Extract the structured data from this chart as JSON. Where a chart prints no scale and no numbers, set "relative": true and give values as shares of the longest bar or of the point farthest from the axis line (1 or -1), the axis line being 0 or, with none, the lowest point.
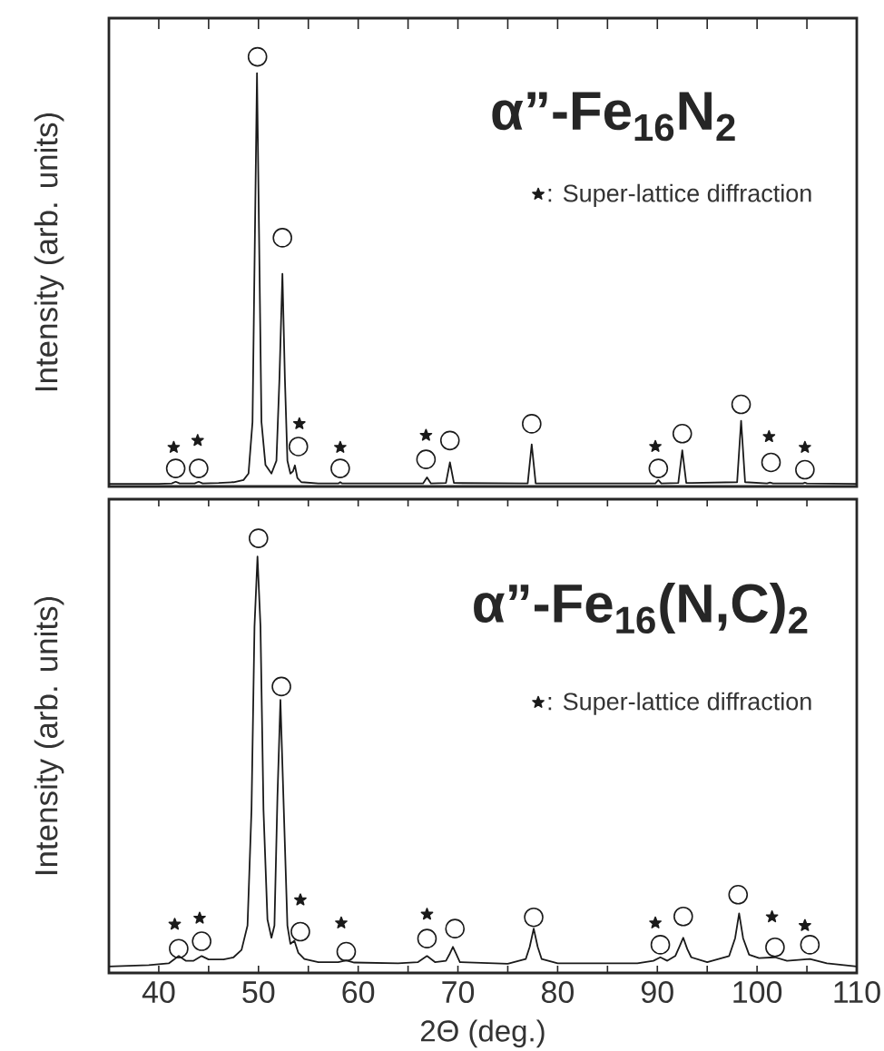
{
  "chart_data": [
    {
      "type": "line",
      "title": "α”-Fe$_{16}$N$_{2}$",
      "ylabel": "Intensity (arb. units)",
      "relative": true,
      "legend": "top right",
      "tick_labels": false,
      "xlim": [
        35,
        110
      ],
      "xticks": [
        40,
        {
          "value": 45,
          "label": null
        },
        50,
        {
          "value": 55,
          "label": null
        },
        60,
        {
          "value": 65,
          "label": null
        },
        70,
        {
          "value": 75,
          "label": null
        },
        80,
        {
          "value": 85,
          "label": null
        },
        90,
        {
          "value": 95,
          "label": null
        },
        100,
        {
          "value": 105,
          "label": null
        },
        110
      ],
      "series": [
        {
          "color": "#1a1a1a",
          "x": [
            35,
            40,
            41.3,
            41.7,
            42.1,
            43.6,
            44.0,
            44.4,
            46.0,
            47.5,
            48.5,
            49.0,
            49.4,
            49.65,
            49.85,
            50.05,
            50.3,
            50.7,
            51.3,
            51.8,
            52.1,
            52.4,
            52.65,
            52.9,
            53.2,
            53.45,
            53.65,
            53.9,
            54.3,
            56.0,
            58.0,
            58.2,
            58.4,
            66.5,
            66.9,
            67.3,
            68.8,
            69.2,
            69.6,
            77.0,
            77.4,
            77.8,
            89.8,
            90.1,
            90.4,
            92.1,
            92.5,
            92.9,
            98.0,
            98.4,
            98.8,
            101.0,
            101.3,
            101.6,
            104.6,
            104.8,
            105.0,
            110
          ],
          "values": [
            0.006,
            0.006,
            0.007,
            0.011,
            0.007,
            0.007,
            0.011,
            0.007,
            0.008,
            0.01,
            0.015,
            0.03,
            0.15,
            0.6,
            0.962,
            0.6,
            0.15,
            0.05,
            0.03,
            0.06,
            0.25,
            0.495,
            0.25,
            0.06,
            0.03,
            0.035,
            0.049,
            0.02,
            0.01,
            0.007,
            0.007,
            0.01,
            0.007,
            0.007,
            0.021,
            0.007,
            0.008,
            0.056,
            0.008,
            0.007,
            0.098,
            0.007,
            0.007,
            0.015,
            0.007,
            0.008,
            0.084,
            0.008,
            0.01,
            0.153,
            0.01,
            0.007,
            0.009,
            0.007,
            0.007,
            0.009,
            0.007,
            0.006
          ]
        },
        {
          "type": "scatter",
          "marker": "circle",
          "color": "#1a1a1a",
          "x": [
            41.7,
            44.0,
            49.9,
            52.4,
            54.0,
            58.2,
            66.8,
            69.2,
            77.4,
            90.1,
            92.5,
            98.4,
            101.4,
            104.8
          ],
          "values": [
            0.042,
            0.042,
            1.0,
            0.579,
            0.093,
            0.042,
            0.063,
            0.107,
            0.146,
            0.042,
            0.123,
            0.191,
            0.056,
            0.039
          ]
        },
        {
          "type": "scatter",
          "marker": "star",
          "name": ": Super-lattice diffraction",
          "color": "#1a1a1a",
          "x": [
            41.5,
            43.9,
            54.1,
            58.2,
            66.8,
            89.8,
            101.2,
            104.8
          ],
          "values": [
            0.091,
            0.107,
            0.146,
            0.091,
            0.119,
            0.093,
            0.116,
            0.091
          ]
        }
      ]
    },
    {
      "type": "line",
      "title": "α”-Fe$_{16}$(N,C)$_{2}$",
      "xlabel": "2Θ (deg.)",
      "ylabel": "Intensity (arb. units)",
      "relative": true,
      "legend": "top right",
      "tick_labels": "x",
      "xlim": [
        35,
        110
      ],
      "xticks": [
        40,
        {
          "value": 45,
          "label": null
        },
        50,
        {
          "value": 55,
          "label": null
        },
        60,
        {
          "value": 65,
          "label": null
        },
        70,
        {
          "value": 75,
          "label": null
        },
        80,
        {
          "value": 85,
          "label": null
        },
        90,
        {
          "value": 95,
          "label": null
        },
        100,
        {
          "value": 105,
          "label": null
        },
        110
      ],
      "series": [
        {
          "color": "#1a1a1a",
          "x": [
            35,
            39,
            41,
            42,
            42.7,
            43.5,
            44.3,
            45,
            46.5,
            47.5,
            48.3,
            48.9,
            49.3,
            49.6,
            49.9,
            50.2,
            50.5,
            50.9,
            51.3,
            51.6,
            51.9,
            52.2,
            52.5,
            52.9,
            53.2,
            53.6,
            54.0,
            54.6,
            56,
            58,
            58.8,
            59.6,
            64,
            66,
            66.9,
            67.7,
            68.8,
            69.2,
            69.5,
            69.8,
            70.2,
            75,
            76.8,
            77.2,
            77.6,
            78.0,
            78.4,
            80,
            88,
            89.6,
            90.3,
            91,
            91.8,
            92.2,
            92.6,
            93.0,
            93.4,
            95,
            97.2,
            97.8,
            98.2,
            98.6,
            99.2,
            100.2,
            101.8,
            103,
            105.3,
            107,
            110
          ],
          "values": [
            0.015,
            0.018,
            0.022,
            0.039,
            0.028,
            0.028,
            0.039,
            0.031,
            0.031,
            0.036,
            0.053,
            0.109,
            0.376,
            0.797,
            0.958,
            0.797,
            0.376,
            0.123,
            0.081,
            0.109,
            0.404,
            0.628,
            0.404,
            0.109,
            0.067,
            0.074,
            0.046,
            0.032,
            0.025,
            0.025,
            0.029,
            0.024,
            0.022,
            0.025,
            0.039,
            0.025,
            0.028,
            0.045,
            0.06,
            0.045,
            0.025,
            0.021,
            0.032,
            0.06,
            0.102,
            0.06,
            0.032,
            0.022,
            0.022,
            0.028,
            0.036,
            0.028,
            0.039,
            0.06,
            0.081,
            0.055,
            0.036,
            0.025,
            0.039,
            0.08,
            0.137,
            0.08,
            0.042,
            0.034,
            0.036,
            0.028,
            0.032,
            0.022,
            0.015
          ]
        },
        {
          "type": "scatter",
          "marker": "circle",
          "color": "#1a1a1a",
          "x": [
            42.0,
            44.3,
            50.0,
            52.3,
            54.2,
            58.8,
            66.9,
            69.7,
            77.6,
            90.3,
            92.6,
            98.1,
            101.8,
            105.3
          ],
          "values": [
            0.056,
            0.073,
            1.0,
            0.659,
            0.095,
            0.049,
            0.079,
            0.102,
            0.128,
            0.065,
            0.13,
            0.18,
            0.059,
            0.065
          ]
        },
        {
          "type": "scatter",
          "marker": "star",
          "name": ": Super-lattice diffraction",
          "color": "#1a1a1a",
          "x": [
            41.6,
            44.1,
            54.2,
            58.3,
            66.9,
            89.8,
            101.5,
            104.8
          ],
          "values": [
            0.112,
            0.126,
            0.168,
            0.115,
            0.135,
            0.115,
            0.129,
            0.109
          ]
        }
      ]
    }
  ]
}
